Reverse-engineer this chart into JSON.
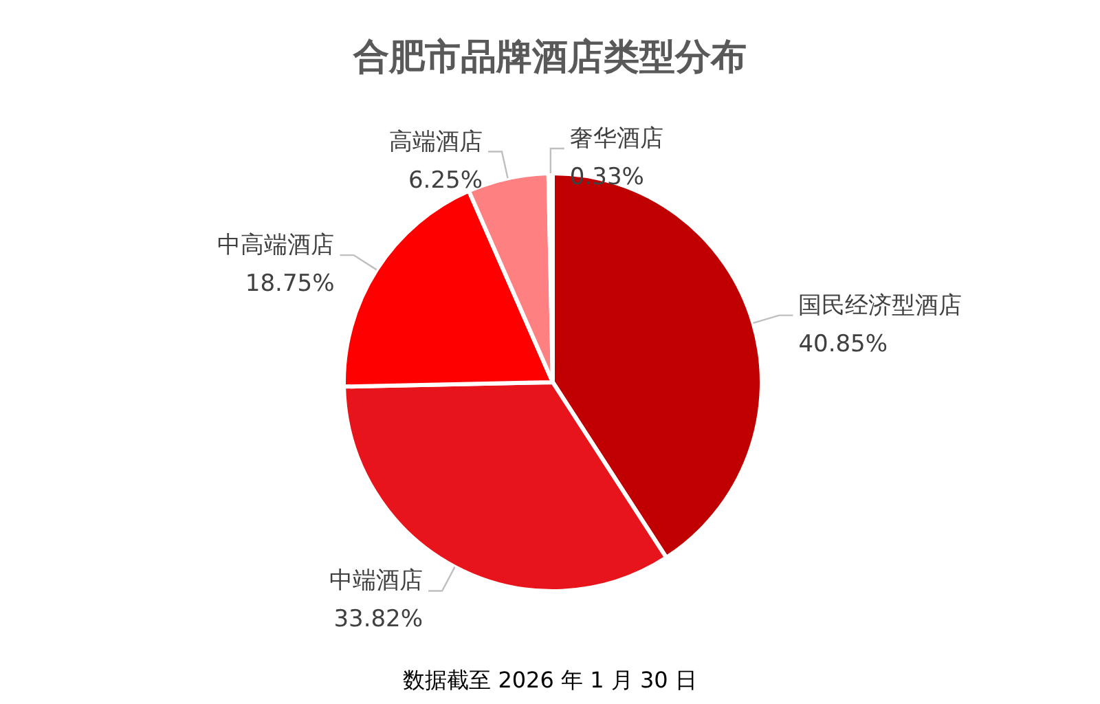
{
  "chart_data": {
    "type": "pie",
    "title": "合肥市品牌酒店类型分布",
    "categories": [
      "国民经济型酒店",
      "中端酒店",
      "中高端酒店",
      "高端酒店",
      "奢华酒店"
    ],
    "values": [
      40.85,
      33.82,
      18.75,
      6.25,
      0.33
    ],
    "colors": [
      "#c00000",
      "#e8141c",
      "#ff0000",
      "#ff8080",
      "#ffc9c9"
    ],
    "value_labels": [
      "40.85%",
      "33.82%",
      "18.75%",
      "6.25%",
      "0.33%"
    ],
    "annotations": [
      "数据截至 2026 年 1 月 30 日"
    ]
  }
}
